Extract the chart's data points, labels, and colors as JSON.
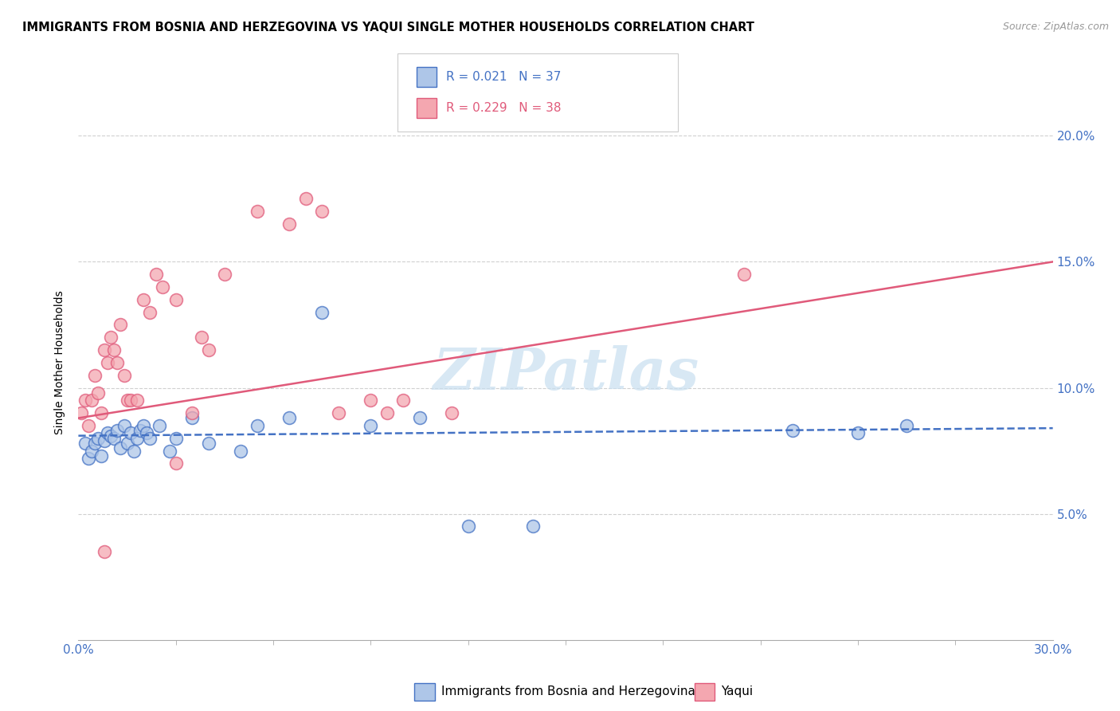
{
  "title": "IMMIGRANTS FROM BOSNIA AND HERZEGOVINA VS YAQUI SINGLE MOTHER HOUSEHOLDS CORRELATION CHART",
  "source": "Source: ZipAtlas.com",
  "ylabel": "Single Mother Households",
  "x_min": 0.0,
  "x_max": 30.0,
  "y_min": 0.0,
  "y_max": 22.0,
  "y_ticks": [
    5.0,
    10.0,
    15.0,
    20.0
  ],
  "x_ticks": [
    0.0,
    30.0
  ],
  "x_minor_ticks": [
    3.0,
    6.0,
    9.0,
    12.0,
    15.0,
    18.0,
    21.0,
    24.0,
    27.0
  ],
  "blue_label": "Immigrants from Bosnia and Herzegovina",
  "pink_label": "Yaqui",
  "blue_R": "R = 0.021",
  "blue_N": "N = 37",
  "pink_R": "R = 0.229",
  "pink_N": "N = 38",
  "blue_fill_color": "#aec6e8",
  "pink_fill_color": "#f4a7b0",
  "blue_edge_color": "#4472c4",
  "pink_edge_color": "#e05a7a",
  "blue_trend_color": "#4472c4",
  "pink_trend_color": "#e05a7a",
  "tick_label_color": "#4472c4",
  "grid_color": "#d0d0d0",
  "watermark_color": "#c8dff0",
  "blue_scatter_x": [
    0.2,
    0.3,
    0.4,
    0.5,
    0.6,
    0.7,
    0.8,
    0.9,
    1.0,
    1.1,
    1.2,
    1.3,
    1.4,
    1.5,
    1.6,
    1.7,
    1.8,
    1.9,
    2.0,
    2.1,
    2.2,
    2.5,
    2.8,
    3.0,
    3.5,
    4.0,
    5.0,
    5.5,
    6.5,
    7.5,
    9.0,
    10.5,
    12.0,
    14.0,
    22.0,
    24.0,
    25.5
  ],
  "blue_scatter_y": [
    7.8,
    7.2,
    7.5,
    7.8,
    8.0,
    7.3,
    7.9,
    8.2,
    8.1,
    8.0,
    8.3,
    7.6,
    8.5,
    7.8,
    8.2,
    7.5,
    8.0,
    8.3,
    8.5,
    8.2,
    8.0,
    8.5,
    7.5,
    8.0,
    8.8,
    7.8,
    7.5,
    8.5,
    8.8,
    13.0,
    8.5,
    8.8,
    4.5,
    4.5,
    8.3,
    8.2,
    8.5
  ],
  "pink_scatter_x": [
    0.1,
    0.2,
    0.3,
    0.4,
    0.5,
    0.6,
    0.7,
    0.8,
    0.9,
    1.0,
    1.1,
    1.2,
    1.3,
    1.4,
    1.5,
    1.6,
    1.8,
    2.0,
    2.2,
    2.4,
    2.6,
    3.0,
    3.5,
    3.8,
    4.0,
    4.5,
    5.5,
    6.5,
    7.0,
    7.5,
    8.0,
    9.0,
    9.5,
    10.0,
    11.5,
    20.5,
    3.0,
    0.8
  ],
  "pink_scatter_y": [
    9.0,
    9.5,
    8.5,
    9.5,
    10.5,
    9.8,
    9.0,
    11.5,
    11.0,
    12.0,
    11.5,
    11.0,
    12.5,
    10.5,
    9.5,
    9.5,
    9.5,
    13.5,
    13.0,
    14.5,
    14.0,
    13.5,
    9.0,
    12.0,
    11.5,
    14.5,
    17.0,
    16.5,
    17.5,
    17.0,
    9.0,
    9.5,
    9.0,
    9.5,
    9.0,
    14.5,
    7.0,
    3.5
  ],
  "blue_trend_x": [
    0.0,
    30.0
  ],
  "blue_trend_y": [
    8.1,
    8.4
  ],
  "pink_trend_x": [
    0.0,
    30.0
  ],
  "pink_trend_y": [
    8.8,
    15.0
  ]
}
